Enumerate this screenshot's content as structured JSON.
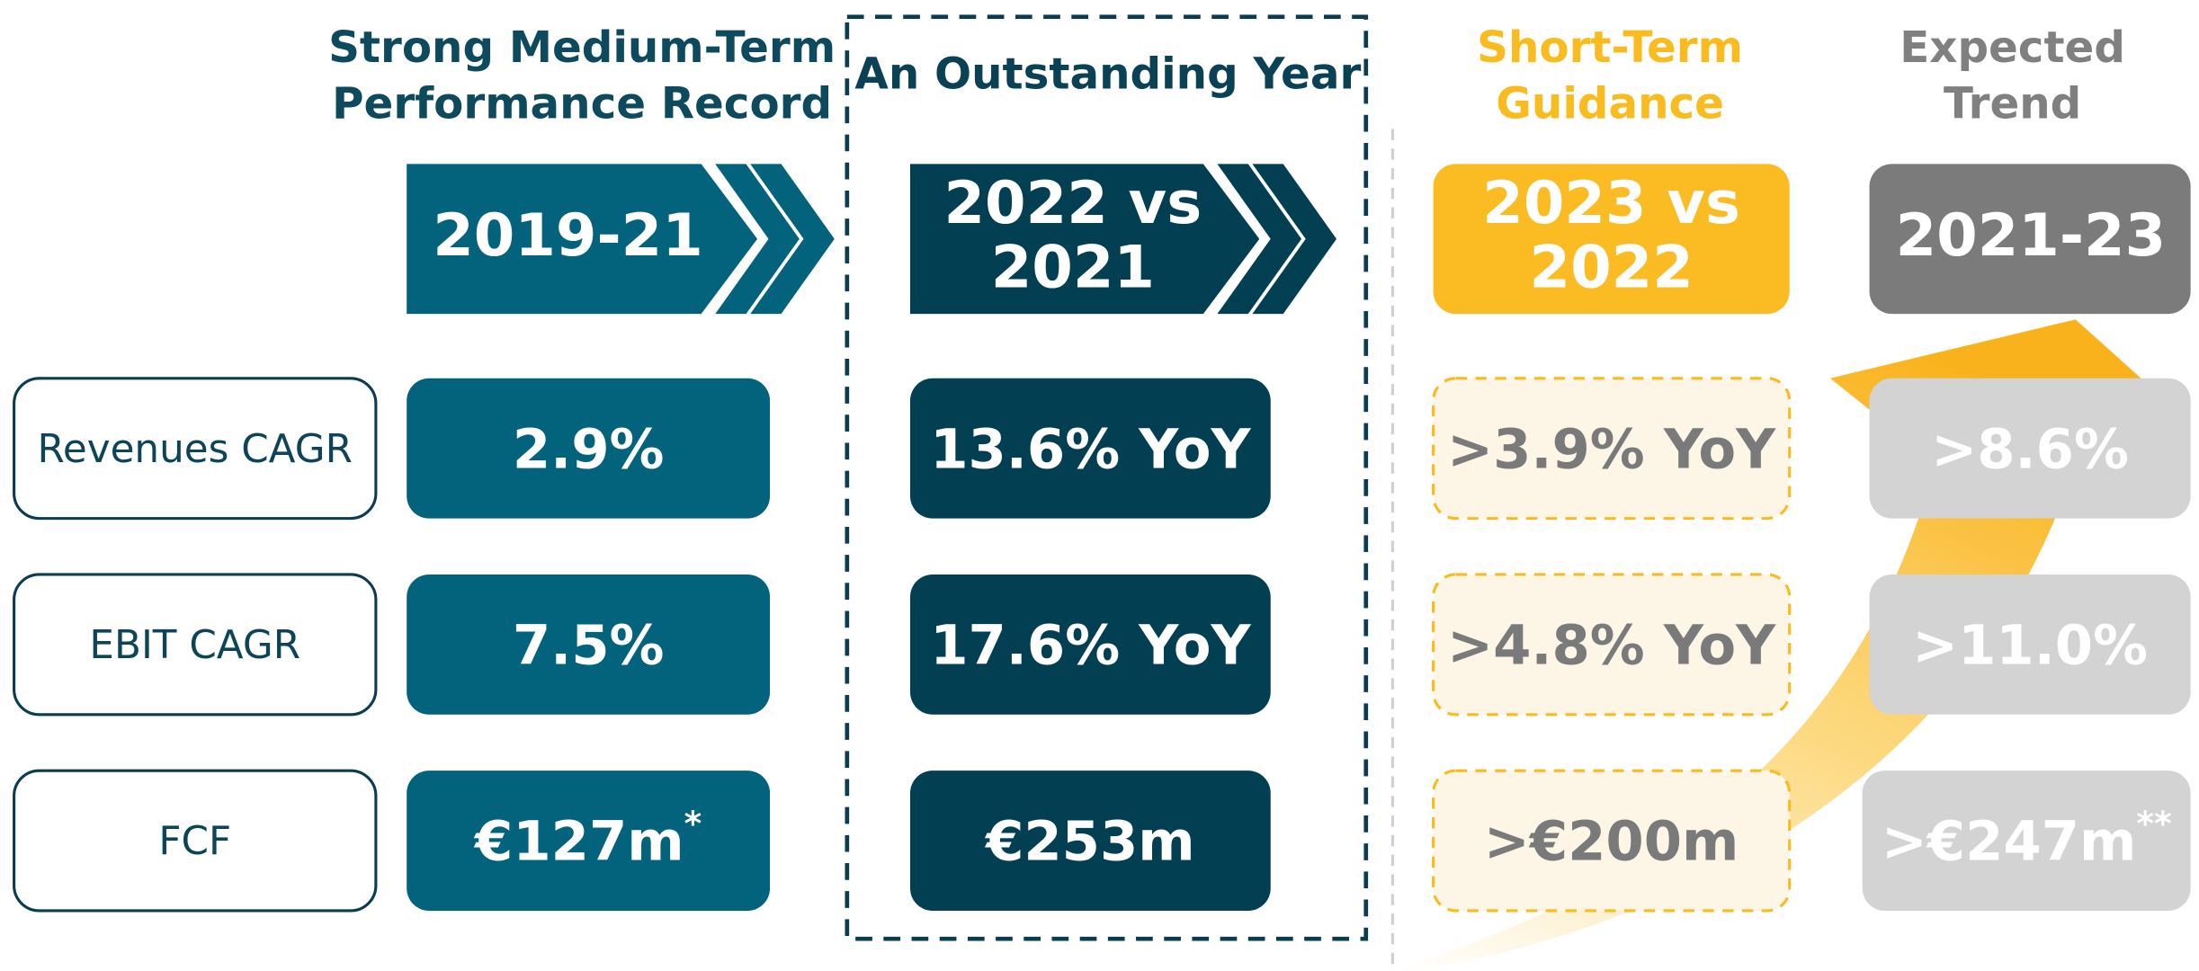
{
  "rows": [
    "Revenues CAGR",
    "EBIT CAGR",
    "FCF"
  ],
  "columns": [
    {
      "title_lines": [
        "Strong Medium-Term",
        "Performance Record"
      ],
      "period_lines": [
        "2019-21"
      ],
      "cells": [
        {
          "text": "2.9%"
        },
        {
          "text": "7.5%"
        },
        {
          "text": "€127m",
          "note": "*"
        }
      ]
    },
    {
      "title_lines": [
        "An Outstanding Year"
      ],
      "period_lines": [
        "2022 vs",
        "2021"
      ],
      "cells": [
        {
          "text": "13.6% YoY"
        },
        {
          "text": "17.6% YoY"
        },
        {
          "text": "€253m"
        }
      ]
    },
    {
      "title_lines": [
        "Short-Term",
        "Guidance"
      ],
      "period_lines": [
        "2023 vs",
        "2022"
      ],
      "cells": [
        {
          "text": ">3.9% YoY"
        },
        {
          "text": ">4.8% YoY"
        },
        {
          "text": ">€200m"
        }
      ]
    },
    {
      "title_lines": [
        "Expected",
        "Trend"
      ],
      "period_lines": [
        "2021-23"
      ],
      "cells": [
        {
          "text": ">8.6%"
        },
        {
          "text": ">11.0%"
        },
        {
          "text": ">€247m",
          "note": "**"
        }
      ]
    }
  ]
}
